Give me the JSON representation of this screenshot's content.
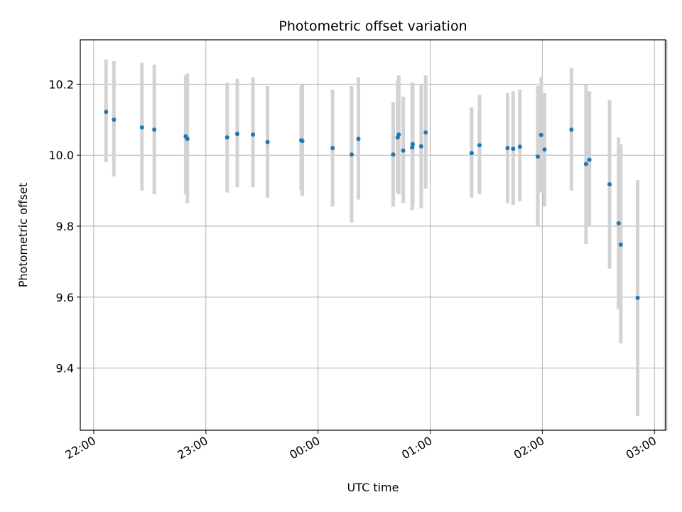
{
  "chart_data": {
    "type": "scatter",
    "title": "Photometric offset variation",
    "xlabel": "UTC time",
    "ylabel": "Photometric offset",
    "x_unit": "hours since 22:00",
    "xlim": [
      -0.12,
      5.1
    ],
    "ylim": [
      9.225,
      10.325
    ],
    "x_ticks": [
      0,
      1,
      2,
      3,
      4,
      5
    ],
    "x_tick_labels": [
      "22:00",
      "23:00",
      "00:00",
      "01:00",
      "02:00",
      "03:00"
    ],
    "y_ticks": [
      9.4,
      9.6,
      9.8,
      10.0,
      10.2
    ],
    "y_tick_labels": [
      "9.4",
      "9.6",
      "9.8",
      "10.0",
      "10.2"
    ],
    "grid": true,
    "marker_color": "#1f77b4",
    "errorbar_color": "#d3d3d3",
    "points": [
      {
        "x": 0.11,
        "y": 10.122,
        "lo": 9.98,
        "hi": 10.27
      },
      {
        "x": 0.18,
        "y": 10.1,
        "lo": 9.94,
        "hi": 10.265
      },
      {
        "x": 0.43,
        "y": 10.078,
        "lo": 9.9,
        "hi": 10.26
      },
      {
        "x": 0.54,
        "y": 10.072,
        "lo": 9.89,
        "hi": 10.255
      },
      {
        "x": 0.82,
        "y": 10.053,
        "lo": 9.89,
        "hi": 10.225
      },
      {
        "x": 0.835,
        "y": 10.046,
        "lo": 9.865,
        "hi": 10.23
      },
      {
        "x": 1.19,
        "y": 10.05,
        "lo": 9.895,
        "hi": 10.205
      },
      {
        "x": 1.28,
        "y": 10.06,
        "lo": 9.91,
        "hi": 10.215
      },
      {
        "x": 1.42,
        "y": 10.058,
        "lo": 9.91,
        "hi": 10.22
      },
      {
        "x": 1.55,
        "y": 10.037,
        "lo": 9.88,
        "hi": 10.195
      },
      {
        "x": 1.85,
        "y": 10.042,
        "lo": 9.9,
        "hi": 10.195
      },
      {
        "x": 1.86,
        "y": 10.04,
        "lo": 9.885,
        "hi": 10.2
      },
      {
        "x": 2.13,
        "y": 10.02,
        "lo": 9.855,
        "hi": 10.185
      },
      {
        "x": 2.3,
        "y": 10.002,
        "lo": 9.81,
        "hi": 10.195
      },
      {
        "x": 2.36,
        "y": 10.046,
        "lo": 9.875,
        "hi": 10.22
      },
      {
        "x": 2.67,
        "y": 10.002,
        "lo": 9.855,
        "hi": 10.15
      },
      {
        "x": 2.71,
        "y": 10.05,
        "lo": 9.895,
        "hi": 10.21
      },
      {
        "x": 2.72,
        "y": 10.058,
        "lo": 9.89,
        "hi": 10.225
      },
      {
        "x": 2.76,
        "y": 10.013,
        "lo": 9.865,
        "hi": 10.165
      },
      {
        "x": 2.84,
        "y": 10.022,
        "lo": 9.845,
        "hi": 10.205
      },
      {
        "x": 2.845,
        "y": 10.031,
        "lo": 9.86,
        "hi": 10.2
      },
      {
        "x": 2.92,
        "y": 10.025,
        "lo": 9.85,
        "hi": 10.2
      },
      {
        "x": 2.96,
        "y": 10.064,
        "lo": 9.905,
        "hi": 10.225
      },
      {
        "x": 3.37,
        "y": 10.006,
        "lo": 9.88,
        "hi": 10.135
      },
      {
        "x": 3.44,
        "y": 10.028,
        "lo": 9.89,
        "hi": 10.17
      },
      {
        "x": 3.69,
        "y": 10.02,
        "lo": 9.865,
        "hi": 10.175
      },
      {
        "x": 3.74,
        "y": 10.018,
        "lo": 9.86,
        "hi": 10.18
      },
      {
        "x": 3.8,
        "y": 10.024,
        "lo": 9.87,
        "hi": 10.185
      },
      {
        "x": 3.96,
        "y": 9.996,
        "lo": 9.8,
        "hi": 10.195
      },
      {
        "x": 3.99,
        "y": 10.057,
        "lo": 9.895,
        "hi": 10.22
      },
      {
        "x": 4.02,
        "y": 10.016,
        "lo": 9.855,
        "hi": 10.175
      },
      {
        "x": 4.26,
        "y": 10.072,
        "lo": 9.9,
        "hi": 10.245
      },
      {
        "x": 4.39,
        "y": 9.975,
        "lo": 9.75,
        "hi": 10.2
      },
      {
        "x": 4.42,
        "y": 9.987,
        "lo": 9.8,
        "hi": 10.18
      },
      {
        "x": 4.6,
        "y": 9.918,
        "lo": 9.68,
        "hi": 10.155
      },
      {
        "x": 4.68,
        "y": 9.808,
        "lo": 9.565,
        "hi": 10.05
      },
      {
        "x": 4.7,
        "y": 9.748,
        "lo": 9.47,
        "hi": 10.03
      },
      {
        "x": 4.85,
        "y": 9.598,
        "lo": 9.265,
        "hi": 9.93
      },
      {
        "x": 5.1,
        "y": 9.8,
        "lo": 9.225,
        "hi": 10.325,
        "bar_only": true
      }
    ]
  }
}
